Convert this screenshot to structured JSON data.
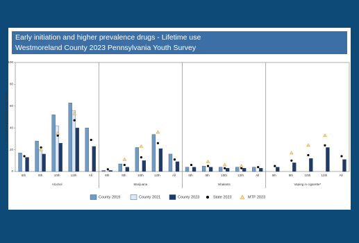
{
  "chart_data": {
    "type": "bar",
    "title": "Early initiation and higher prevalence drugs - Lifetime use",
    "subtitle": "Westmoreland County 2023 Pennsylvania Youth Survey",
    "y_label": "Percentage indicating use in their lifetime",
    "groups": [
      "Alcohol",
      "Marijuana",
      "Inhalants",
      "Vaping in cigarette*"
    ],
    "categories": [
      "6th",
      "8th",
      "10th",
      "12th",
      "All",
      "6th",
      "8th",
      "10th",
      "12th",
      "All",
      "6th",
      "8th",
      "10th",
      "12th",
      "All",
      "6th",
      "8th",
      "10th",
      "12th",
      "All"
    ],
    "ylim": [
      0,
      100
    ],
    "yticks": [
      0,
      20,
      40,
      60,
      80,
      100
    ],
    "series": [
      {
        "name": "County 2019",
        "kind": "bar",
        "color": "#6f9cc4",
        "values": [
          17,
          28,
          52,
          63,
          40,
          1,
          7,
          22,
          34,
          16,
          4,
          5,
          4,
          4,
          4,
          null,
          null,
          null,
          null,
          null
        ]
      },
      {
        "name": "County 2021",
        "kind": "bar",
        "color": "#dce9f4",
        "values": [
          null,
          20,
          42,
          56,
          null,
          null,
          null,
          null,
          null,
          null,
          null,
          null,
          null,
          null,
          null,
          null,
          null,
          null,
          null,
          null
        ]
      },
      {
        "name": "County 2023",
        "kind": "bar",
        "color": "#1f3a66",
        "values": [
          13,
          16,
          26,
          40,
          23,
          1,
          4,
          10,
          21,
          9,
          4,
          4,
          3,
          3,
          3,
          4,
          8,
          12,
          22,
          11
        ]
      },
      {
        "name": "State 2023",
        "kind": "dot",
        "color": "#000000",
        "values": [
          14,
          22,
          33,
          47,
          29,
          2,
          6,
          13,
          26,
          11,
          6,
          5,
          3,
          3,
          4,
          5,
          10,
          15,
          24,
          14
        ]
      },
      {
        "name": "MTF 2023",
        "kind": "triangle",
        "color": "#e8a33a",
        "values": [
          null,
          20,
          35,
          53,
          null,
          null,
          11,
          23,
          36,
          null,
          null,
          9,
          6,
          5,
          null,
          null,
          17,
          24,
          33,
          null
        ]
      }
    ]
  }
}
